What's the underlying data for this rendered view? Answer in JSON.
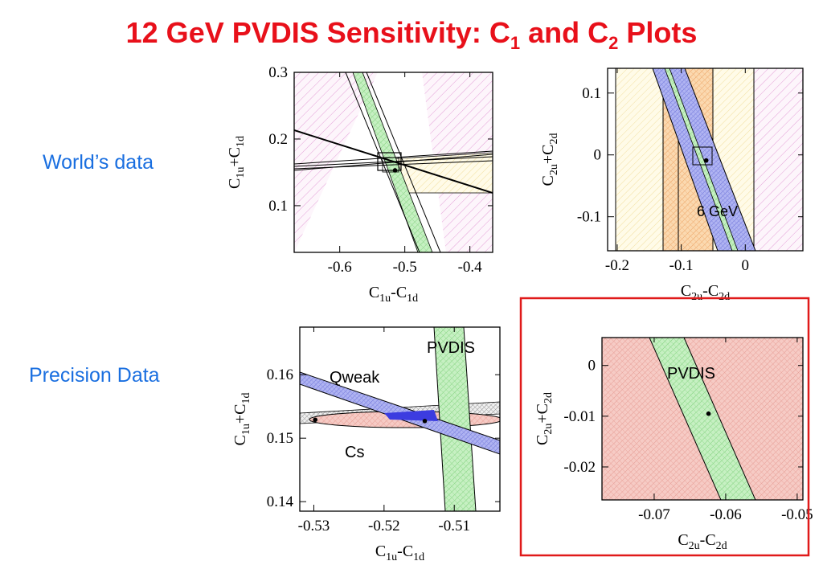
{
  "page": {
    "title_main": "12 GeV PVDIS Sensitivity: C",
    "title_sub1": "1",
    "title_and": " and C",
    "title_sub2": "2",
    "title_end": " Plots",
    "row_labels": [
      "World’s data",
      "Precision Data"
    ]
  },
  "colors": {
    "title": "#e8101a",
    "row_label": "#1a6fe0",
    "highlight_box": "#e01a1a"
  },
  "chart_data": [
    {
      "id": "c1-world",
      "type": "scatter",
      "xlabel": "C1u-C1d",
      "ylabel": "C1u+C1d",
      "xlim": [
        -0.67,
        -0.365
      ],
      "ylim": [
        0.03,
        0.3
      ],
      "xticks": [
        -0.6,
        -0.5,
        -0.4
      ],
      "xtick_labels": [
        "-0.6",
        "-0.5",
        "-0.4"
      ],
      "yticks": [
        0.1,
        0.2,
        0.3
      ],
      "ytick_labels": [
        "0.1",
        "0.2",
        "0.3"
      ],
      "points": [
        {
          "x": -0.515,
          "y": 0.153
        }
      ]
    },
    {
      "id": "c2-world",
      "type": "scatter",
      "xlabel": "C2u-C2d",
      "ylabel": "C2u+C2d",
      "xlim": [
        -0.215,
        0.09
      ],
      "ylim": [
        -0.155,
        0.14
      ],
      "xticks": [
        -0.2,
        -0.1,
        0
      ],
      "xtick_labels": [
        "-0.2",
        "-0.1",
        "0"
      ],
      "yticks": [
        -0.1,
        0,
        0.1
      ],
      "ytick_labels": [
        "-0.1",
        "0",
        "0.1"
      ],
      "annotations": [
        "6 GeV"
      ],
      "points": [
        {
          "x": -0.061,
          "y": -0.009
        }
      ]
    },
    {
      "id": "c1-precision",
      "type": "scatter",
      "xlabel": "C1u-C1d",
      "ylabel": "C1u+C1d",
      "xlim": [
        -0.532,
        -0.5035
      ],
      "ylim": [
        0.1385,
        0.1675
      ],
      "xticks": [
        -0.53,
        -0.52,
        -0.51
      ],
      "xtick_labels": [
        "-0.53",
        "-0.52",
        "-0.51"
      ],
      "yticks": [
        0.14,
        0.15,
        0.16
      ],
      "ytick_labels": [
        "0.14",
        "0.15",
        "0.16"
      ],
      "annotations": [
        "PVDIS",
        "Qweak",
        "Cs"
      ],
      "points": [
        {
          "x": -0.5298,
          "y": 0.1529
        },
        {
          "x": -0.5142,
          "y": 0.1527
        }
      ]
    },
    {
      "id": "c2-precision",
      "type": "scatter",
      "xlabel": "C2u-C2d",
      "ylabel": "C2u+C2d",
      "xlim": [
        -0.0773,
        -0.0492
      ],
      "ylim": [
        -0.0265,
        0.0055
      ],
      "xticks": [
        -0.07,
        -0.06,
        -0.05
      ],
      "xtick_labels": [
        "-0.07",
        "-0.06",
        "-0.05"
      ],
      "yticks": [
        -0.02,
        -0.01,
        0
      ],
      "ytick_labels": [
        "-0.02",
        "-0.01",
        "0"
      ],
      "annotations": [
        "PVDIS"
      ],
      "points": [
        {
          "x": -0.0624,
          "y": -0.0095
        }
      ]
    }
  ]
}
